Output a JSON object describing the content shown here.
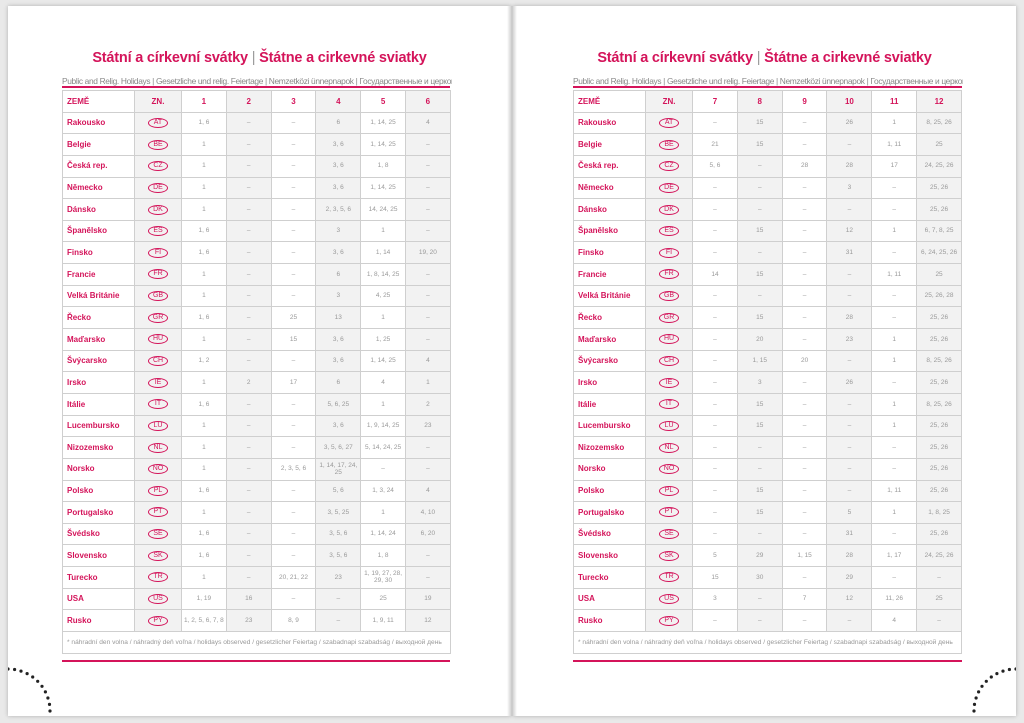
{
  "title_cz": "Státní a církevní svátky",
  "title_sk": "Štátne a cirkevné sviatky",
  "subtitle": "Public and Relig. Holidays | Gesetzliche und relig. Feiertage | Nemzetközi ünnepnapok | Государственные и церковные праздники",
  "header": {
    "country": "ZEMĚ",
    "code": "ZN."
  },
  "footnote": "* náhradní den volna / náhradný deň voľna / holidays observed / gesetzlicher Feiertag / szabadnapi szabadság / выходной день",
  "accent_color": "#d4145a",
  "countries": [
    {
      "name": "Rakousko",
      "code": "AT"
    },
    {
      "name": "Belgie",
      "code": "BE"
    },
    {
      "name": "Česká rep.",
      "code": "CZ"
    },
    {
      "name": "Německo",
      "code": "DE"
    },
    {
      "name": "Dánsko",
      "code": "DK"
    },
    {
      "name": "Španělsko",
      "code": "ES"
    },
    {
      "name": "Finsko",
      "code": "FI"
    },
    {
      "name": "Francie",
      "code": "FR"
    },
    {
      "name": "Velká Británie",
      "code": "GB"
    },
    {
      "name": "Řecko",
      "code": "GR"
    },
    {
      "name": "Maďarsko",
      "code": "HU"
    },
    {
      "name": "Švýcarsko",
      "code": "CH"
    },
    {
      "name": "Irsko",
      "code": "IE"
    },
    {
      "name": "Itálie",
      "code": "IT"
    },
    {
      "name": "Lucembursko",
      "code": "LU"
    },
    {
      "name": "Nizozemsko",
      "code": "NL"
    },
    {
      "name": "Norsko",
      "code": "NO"
    },
    {
      "name": "Polsko",
      "code": "PL"
    },
    {
      "name": "Portugalsko",
      "code": "PT"
    },
    {
      "name": "Švédsko",
      "code": "SE"
    },
    {
      "name": "Slovensko",
      "code": "SK"
    },
    {
      "name": "Turecko",
      "code": "TR"
    },
    {
      "name": "USA",
      "code": "US"
    },
    {
      "name": "Rusko",
      "code": "PY"
    }
  ],
  "left": {
    "months": [
      "1",
      "2",
      "3",
      "4",
      "5",
      "6"
    ],
    "rows": [
      [
        "1, 6",
        "–",
        "–",
        "6",
        "1, 14, 25",
        "4"
      ],
      [
        "1",
        "–",
        "–",
        "3, 6",
        "1, 14, 25",
        "–"
      ],
      [
        "1",
        "–",
        "–",
        "3, 6",
        "1, 8",
        "–"
      ],
      [
        "1",
        "–",
        "–",
        "3, 6",
        "1, 14, 25",
        "–"
      ],
      [
        "1",
        "–",
        "–",
        "2, 3, 5, 6",
        "14, 24, 25",
        "–"
      ],
      [
        "1, 6",
        "–",
        "–",
        "3",
        "1",
        "–"
      ],
      [
        "1, 6",
        "–",
        "–",
        "3, 6",
        "1, 14",
        "19, 20"
      ],
      [
        "1",
        "–",
        "–",
        "6",
        "1, 8, 14, 25",
        "–"
      ],
      [
        "1",
        "–",
        "–",
        "3",
        "4, 25",
        "–"
      ],
      [
        "1, 6",
        "–",
        "25",
        "13",
        "1",
        "–"
      ],
      [
        "1",
        "–",
        "15",
        "3, 6",
        "1, 25",
        "–"
      ],
      [
        "1, 2",
        "–",
        "–",
        "3, 6",
        "1, 14, 25",
        "4"
      ],
      [
        "1",
        "2",
        "17",
        "6",
        "4",
        "1"
      ],
      [
        "1, 6",
        "–",
        "–",
        "5, 6, 25",
        "1",
        "2"
      ],
      [
        "1",
        "–",
        "–",
        "3, 6",
        "1, 9, 14, 25",
        "23"
      ],
      [
        "1",
        "–",
        "–",
        "3, 5, 6, 27",
        "5, 14, 24, 25",
        "–"
      ],
      [
        "1",
        "–",
        "2, 3, 5, 6",
        "1, 14, 17, 24, 25",
        "–",
        "–"
      ],
      [
        "1, 6",
        "–",
        "–",
        "5, 6",
        "1, 3, 24",
        "4"
      ],
      [
        "1",
        "–",
        "–",
        "3, 5, 25",
        "1",
        "4, 10"
      ],
      [
        "1, 6",
        "–",
        "–",
        "3, 5, 6",
        "1, 14, 24",
        "6, 20"
      ],
      [
        "1, 6",
        "–",
        "–",
        "3, 5, 6",
        "1, 8",
        "–"
      ],
      [
        "1",
        "–",
        "20, 21, 22",
        "23",
        "1, 19, 27, 28, 29, 30",
        "–"
      ],
      [
        "1, 19",
        "16",
        "–",
        "–",
        "25",
        "19"
      ],
      [
        "1, 2, 5, 6, 7, 8",
        "23",
        "8, 9",
        "–",
        "1, 9, 11",
        "12"
      ]
    ]
  },
  "right": {
    "months": [
      "7",
      "8",
      "9",
      "10",
      "11",
      "12"
    ],
    "rows": [
      [
        "–",
        "15",
        "–",
        "26",
        "1",
        "8, 25, 26"
      ],
      [
        "21",
        "15",
        "–",
        "–",
        "1, 11",
        "25"
      ],
      [
        "5, 6",
        "–",
        "28",
        "28",
        "17",
        "24, 25, 26"
      ],
      [
        "–",
        "–",
        "–",
        "3",
        "–",
        "25, 26"
      ],
      [
        "–",
        "–",
        "–",
        "–",
        "–",
        "25, 26"
      ],
      [
        "–",
        "15",
        "–",
        "12",
        "1",
        "6, 7, 8, 25"
      ],
      [
        "–",
        "–",
        "–",
        "31",
        "–",
        "6, 24, 25, 26"
      ],
      [
        "14",
        "15",
        "–",
        "–",
        "1, 11",
        "25"
      ],
      [
        "–",
        "–",
        "–",
        "–",
        "–",
        "25, 26, 28"
      ],
      [
        "–",
        "15",
        "–",
        "28",
        "–",
        "25, 26"
      ],
      [
        "–",
        "20",
        "–",
        "23",
        "1",
        "25, 26"
      ],
      [
        "–",
        "1, 15",
        "20",
        "–",
        "1",
        "8, 25, 26"
      ],
      [
        "–",
        "3",
        "–",
        "26",
        "–",
        "25, 26"
      ],
      [
        "–",
        "15",
        "–",
        "–",
        "1",
        "8, 25, 26"
      ],
      [
        "–",
        "15",
        "–",
        "–",
        "1",
        "25, 26"
      ],
      [
        "–",
        "–",
        "–",
        "–",
        "–",
        "25, 26"
      ],
      [
        "–",
        "–",
        "–",
        "–",
        "–",
        "25, 26"
      ],
      [
        "–",
        "15",
        "–",
        "–",
        "1, 11",
        "25, 26"
      ],
      [
        "–",
        "15",
        "–",
        "5",
        "1",
        "1, 8, 25"
      ],
      [
        "–",
        "–",
        "–",
        "31",
        "–",
        "25, 26"
      ],
      [
        "5",
        "29",
        "1, 15",
        "28",
        "1, 17",
        "24, 25, 26"
      ],
      [
        "15",
        "30",
        "–",
        "29",
        "–",
        "–"
      ],
      [
        "3",
        "–",
        "7",
        "12",
        "11, 26",
        "25"
      ],
      [
        "–",
        "–",
        "–",
        "–",
        "4",
        "–"
      ]
    ]
  }
}
